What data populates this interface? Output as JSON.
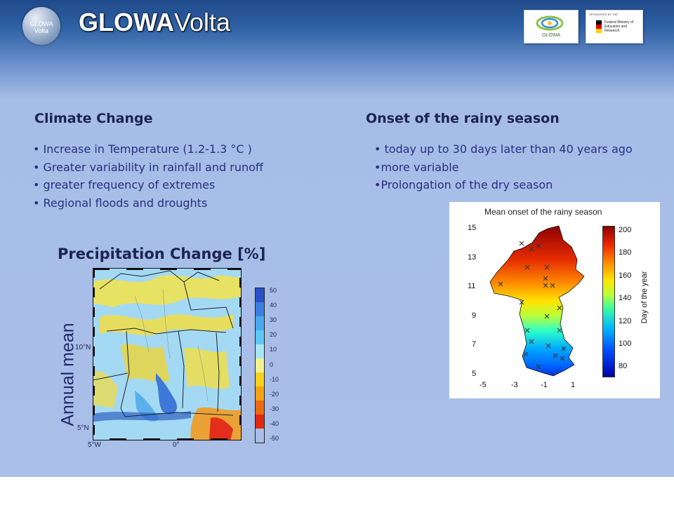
{
  "header": {
    "logo_line1": "GLOWA",
    "logo_line2": "Volta",
    "title_bold": "GLOWA",
    "title_regular": "Volta",
    "sponsor1_label": "GLOWA",
    "sponsor2_small": "SPONSORED BY THE",
    "sponsor2_text": "Federal Ministry of Education and Research"
  },
  "left": {
    "heading": "Climate Change",
    "bullets": [
      "• Increase in Temperature (1.2-1.3 °C )",
      "• Greater variability in rainfall and runoff",
      "• greater frequency of extremes",
      "• Regional floods and droughts"
    ]
  },
  "right": {
    "heading": "Onset of the rainy season",
    "bullets": [
      "• today up to 30 days later than 40 years ago",
      "•more variable",
      "•Prolongation of the dry season"
    ]
  },
  "precip": {
    "title": "Precipitation Change [%]",
    "side_label": "Annual mean",
    "lat_labels": [
      "10°N",
      "5°N"
    ],
    "lon_labels": [
      "5°W",
      "0°"
    ],
    "colorbar_labels": [
      "50",
      "40",
      "30",
      "20",
      "10",
      "0",
      "-10",
      "-20",
      "-30",
      "-40",
      "-50"
    ],
    "colorbar_colors": [
      "#2a52c8",
      "#3c7fe0",
      "#4aa8ef",
      "#5cc8f2",
      "#a8e6f6",
      "#f4f090",
      "#f6d21c",
      "#f4a214",
      "#ec6a10",
      "#e22a10"
    ]
  },
  "onset_chart": {
    "title": "Mean onset of the rainy season",
    "y_ticks": [
      "15",
      "13",
      "11",
      "9",
      "7",
      "5"
    ],
    "x_ticks": [
      "-5",
      "-3",
      "-1",
      "1"
    ],
    "colorbar_ticks": [
      "200",
      "180",
      "160",
      "140",
      "120",
      "100",
      "80"
    ],
    "colorbar_label": "Day of the year"
  }
}
